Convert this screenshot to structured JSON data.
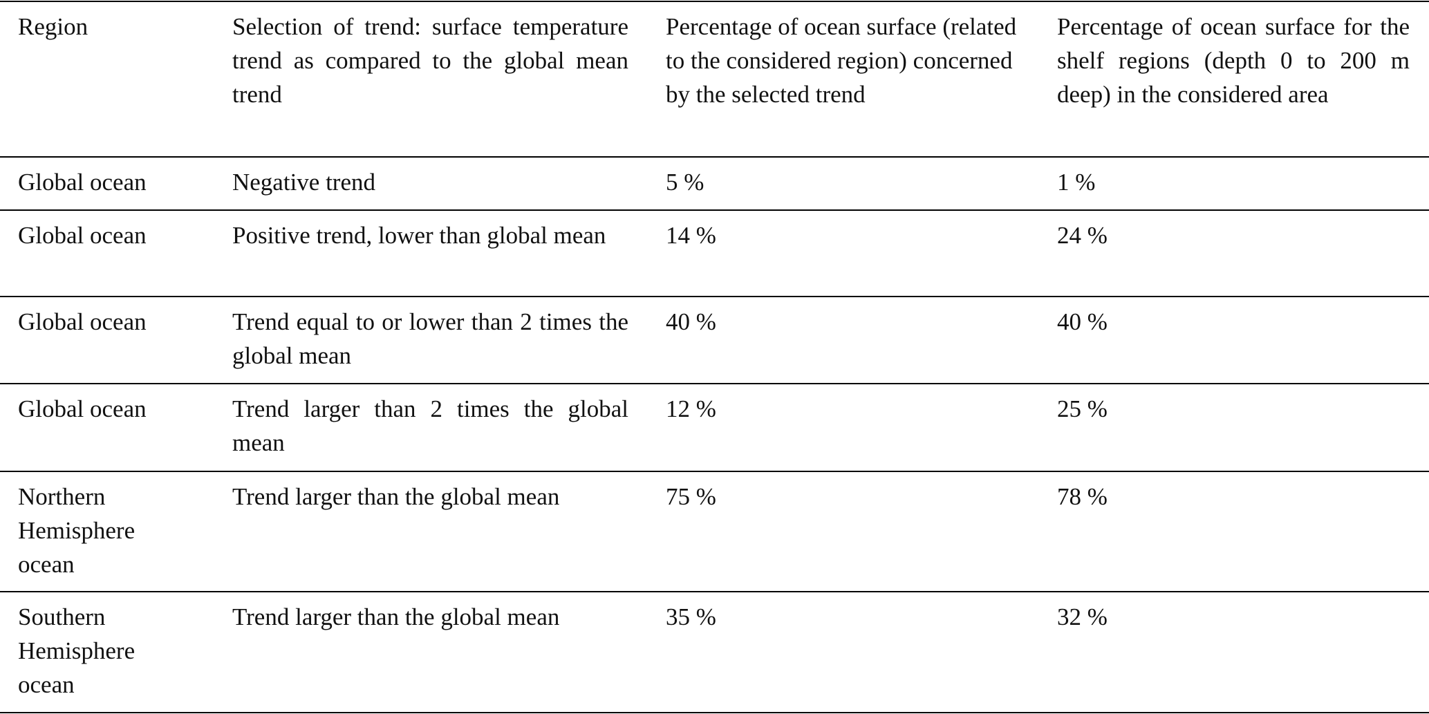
{
  "table": {
    "header": [
      "Region",
      "Selection of trend: surface temperature trend as compared to the global mean trend",
      "Percentage of ocean surface (related to the considered region) concerned by the selected trend",
      "Percentage of ocean surface for the shelf regions (depth 0 to 200 m deep) in the considered area"
    ],
    "rows": [
      [
        "Global ocean",
        "Negative trend",
        "5 %",
        "1 %"
      ],
      [
        "Global ocean",
        "Positive trend, lower than global mean",
        "14 %",
        "24 %"
      ],
      [
        "Global ocean",
        "Trend equal to or lower than 2 times the global mean",
        "40 %",
        "40 %"
      ],
      [
        "Global ocean",
        "Trend larger than 2 times the global mean",
        "12 %",
        "25 %"
      ],
      [
        "Northern Hemisphere ocean",
        "Trend larger than the global mean",
        "75 %",
        "78 %"
      ],
      [
        "Southern Hemisphere ocean",
        "Trend larger than the global mean",
        "35 %",
        "32 %"
      ]
    ]
  }
}
